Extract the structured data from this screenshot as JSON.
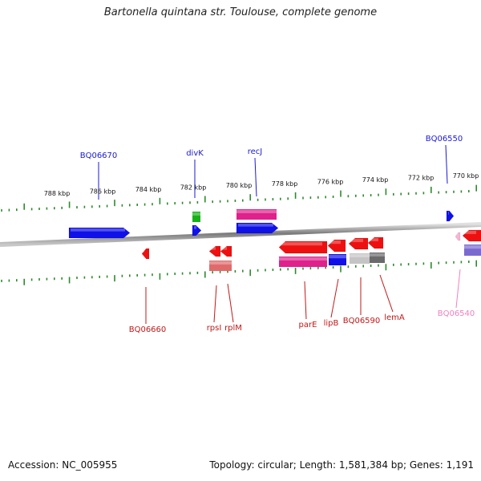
{
  "title": "Bartonella quintana str. Toulouse, complete genome",
  "footer": {
    "accession": "Accession: NC_005955",
    "stats": "Topology: circular; Length: 1,581,384 bp; Genes: 1,191"
  },
  "colors": {
    "backbone": "#7f7f7f",
    "ticks": "#2d8a2d",
    "forward_label": "#1a1ad0",
    "reverse_label": "#c01818",
    "pink_label": "#f080c0",
    "red_gene": "#ee1010",
    "blue_gene": "#1010e8",
    "magenta_gene": "#e0208c",
    "green_gene": "#18b018",
    "gray_gene": "#6a6a6a",
    "lightgray_gene": "#c4c4c4",
    "pinkred_gene": "#e06a6a",
    "lavender_gene": "#7a6ad0",
    "lightpink_gene": "#f6b4d4"
  },
  "kbp_ticks": [
    "788 kbp",
    "786 kbp",
    "784 kbp",
    "782 kbp",
    "780 kbp",
    "778 kbp",
    "776 kbp",
    "774 kbp",
    "772 kbp",
    "770 kbp"
  ],
  "gene_labels": [
    {
      "text": "BQ06670",
      "color": "blue"
    },
    {
      "text": "divK",
      "color": "blue"
    },
    {
      "text": "recJ",
      "color": "blue"
    },
    {
      "text": "BQ06550",
      "color": "blue"
    },
    {
      "text": "BQ06660",
      "color": "red"
    },
    {
      "text": "rpsI",
      "color": "red"
    },
    {
      "text": "rplM",
      "color": "red"
    },
    {
      "text": "parE",
      "color": "red"
    },
    {
      "text": "lipB",
      "color": "red"
    },
    {
      "text": "BQ06590",
      "color": "red"
    },
    {
      "text": "lemA",
      "color": "red"
    },
    {
      "text": "BQ06540",
      "color": "pink"
    }
  ]
}
